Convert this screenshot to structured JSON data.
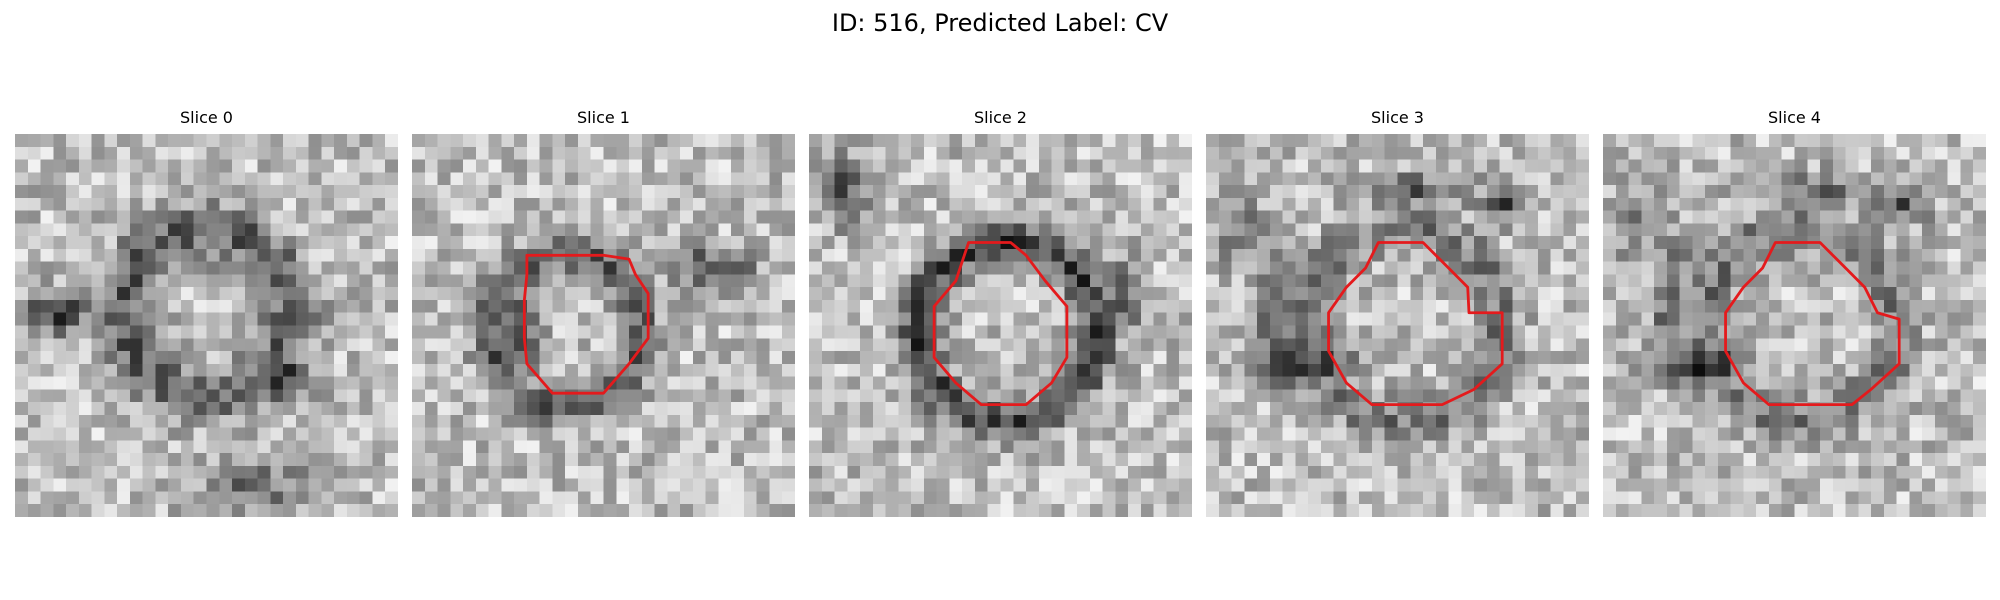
{
  "figure": {
    "title": "ID: 516, Predicted Label: CV"
  },
  "colors": {
    "outline": "#e41a1c",
    "colormap": "grayscale"
  },
  "panels": [
    {
      "title": "Slice 0",
      "has_outline": false,
      "seed": 11,
      "dark_blob": "star"
    },
    {
      "title": "Slice 1",
      "has_outline": true,
      "seed": 23,
      "dark_blob": "left-ring"
    },
    {
      "title": "Slice 2",
      "has_outline": true,
      "seed": 37,
      "dark_blob": "ring"
    },
    {
      "title": "Slice 3",
      "has_outline": true,
      "seed": 53,
      "dark_blob": "cross-left"
    },
    {
      "title": "Slice 4",
      "has_outline": true,
      "seed": 71,
      "dark_blob": "cross-left"
    }
  ]
}
